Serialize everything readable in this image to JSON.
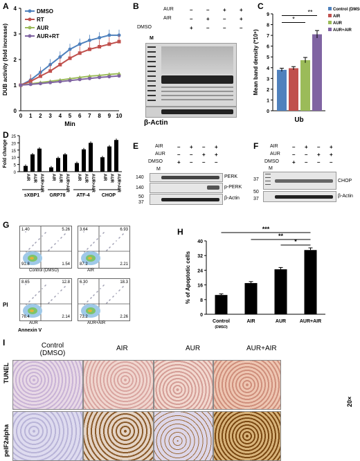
{
  "panels": {
    "A": {
      "letter": "A",
      "chart_data": {
        "type": "line",
        "xlabel": "Min",
        "ylabel": "DUB activity (fold increase)",
        "xlim": [
          0,
          10
        ],
        "ylim": [
          0,
          4
        ],
        "x": [
          0,
          1,
          2,
          3,
          4,
          5,
          6,
          7,
          8,
          9,
          10
        ],
        "series": [
          {
            "name": "DMSO",
            "color": "#4f81bd",
            "values": [
              1.0,
              1.2,
              1.5,
              1.8,
              2.1,
              2.4,
              2.6,
              2.75,
              2.85,
              2.95,
              2.95
            ]
          },
          {
            "name": "RT",
            "color": "#c0504d",
            "values": [
              1.0,
              1.15,
              1.35,
              1.55,
              1.8,
              2.05,
              2.25,
              2.4,
              2.5,
              2.6,
              2.7
            ]
          },
          {
            "name": "AUR",
            "color": "#9bbb59",
            "values": [
              1.0,
              1.05,
              1.1,
              1.15,
              1.2,
              1.25,
              1.3,
              1.35,
              1.38,
              1.42,
              1.45
            ]
          },
          {
            "name": "AUR+RT",
            "color": "#8064a2",
            "values": [
              1.0,
              1.03,
              1.06,
              1.1,
              1.14,
              1.18,
              1.22,
              1.26,
              1.3,
              1.33,
              1.36
            ]
          }
        ],
        "xticks": [
          "0",
          "1",
          "2",
          "3",
          "4",
          "5",
          "6",
          "7",
          "8",
          "9",
          "10"
        ],
        "yticks": [
          "0",
          "1",
          "2",
          "3",
          "4"
        ]
      }
    },
    "B": {
      "letter": "B",
      "rows": [
        {
          "label": "AUR",
          "signs": [
            "–",
            "–",
            "+",
            "+"
          ]
        },
        {
          "label": "AIR",
          "signs": [
            "–",
            "+",
            "–",
            "+"
          ]
        },
        {
          "label": "DMSO",
          "signs": [
            "+",
            "–",
            "–",
            "–"
          ]
        }
      ],
      "marker": "M",
      "loading": "β-Actin"
    },
    "C": {
      "letter": "C",
      "chart_data": {
        "type": "bar",
        "categories": [
          "Control (DMSO)",
          "AIR",
          "AUR",
          "AUR+AIR"
        ],
        "colors": [
          "#4f81bd",
          "#c0504d",
          "#9bbb59",
          "#8064a2"
        ],
        "values": [
          3.8,
          3.95,
          4.7,
          7.1
        ],
        "errors": [
          0.15,
          0.15,
          0.25,
          0.35
        ],
        "xlabel": "Ub",
        "ylabel": "Mean band density (*10⁶)",
        "ylim": [
          0,
          9
        ],
        "yticks": [
          "0",
          "1",
          "2",
          "3",
          "4",
          "5",
          "6",
          "7",
          "8",
          "9"
        ],
        "sig": [
          "*",
          "**"
        ]
      }
    },
    "D": {
      "letter": "D",
      "chart_data": {
        "type": "bar",
        "ylabel": "Fold change",
        "ylim": [
          0,
          25
        ],
        "yticks": [
          "0",
          "5",
          "10",
          "15",
          "20",
          "25"
        ],
        "groups": [
          {
            "name": "sXBP1",
            "values": [
              4,
              12,
              16
            ]
          },
          {
            "name": "GRP78",
            "values": [
              3,
              9.5,
              12
            ]
          },
          {
            "name": "ATF-4",
            "values": [
              6,
              15.5,
              20
            ]
          },
          {
            "name": "CHOP",
            "values": [
              10,
              17.5,
              22
            ]
          }
        ],
        "bar_labels": [
          "AIR",
          "AUR",
          "AUR+AIR"
        ]
      }
    },
    "E": {
      "letter": "E",
      "rows": [
        {
          "label": "AIR",
          "signs": [
            "–",
            "+",
            "–",
            "+"
          ]
        },
        {
          "label": "AUR",
          "signs": [
            "–",
            "–",
            "+",
            "+"
          ]
        },
        {
          "label": "DMSO",
          "signs": [
            "+",
            "–",
            "–",
            "–"
          ]
        }
      ],
      "marker": "M",
      "mw": [
        "140",
        "140",
        "50",
        "37"
      ],
      "proteins": [
        "PERK",
        "p-PERK",
        "β-Actin"
      ]
    },
    "F": {
      "letter": "F",
      "rows": [
        {
          "label": "AIR",
          "signs": [
            "–",
            "+",
            "–",
            "+"
          ]
        },
        {
          "label": "AUR",
          "signs": [
            "–",
            "–",
            "+",
            "+"
          ]
        },
        {
          "label": "DMSO",
          "signs": [
            "+",
            "–",
            "–",
            "–"
          ]
        }
      ],
      "marker": "M",
      "mw": [
        "37",
        "50",
        "37"
      ],
      "proteins": [
        "CHOP",
        "β-Actin"
      ]
    },
    "G": {
      "letter": "G",
      "plots": [
        {
          "name": "Control (DMSO)",
          "q": [
            "1.40",
            "5.26",
            "91.8",
            "1.54"
          ]
        },
        {
          "name": "AIR",
          "q": [
            "3.64",
            "6.93",
            "87.2",
            "2.21"
          ]
        },
        {
          "name": "AUR",
          "q": [
            "8.65",
            "12.8",
            "76.4",
            "2.14"
          ]
        },
        {
          "name": "AUR+AIR",
          "q": [
            "6.30",
            "18.3",
            "73.2",
            "2.26"
          ]
        }
      ],
      "yaxis": "PI",
      "xaxis": "Annexin V"
    },
    "H": {
      "letter": "H",
      "chart_data": {
        "type": "bar",
        "categories": [
          "Control (DMSO)",
          "AIR",
          "AUR",
          "AUR+AIR"
        ],
        "values": [
          10.5,
          17,
          24.5,
          35
        ],
        "errors": [
          0.6,
          0.8,
          1.0,
          1.2
        ],
        "ylabel": "% of Apoptotic cells",
        "ylim": [
          0,
          40
        ],
        "yticks": [
          "0",
          "8",
          "16",
          "24",
          "32",
          "40"
        ],
        "sig": [
          "***",
          "**",
          "*"
        ]
      }
    },
    "I": {
      "letter": "I",
      "columns": [
        "Control (DMSO)",
        "AIR",
        "AUR",
        "AUR+AIR"
      ],
      "rows": [
        "TUNEL",
        "peIF2alpha"
      ],
      "magnification": "20×"
    }
  }
}
